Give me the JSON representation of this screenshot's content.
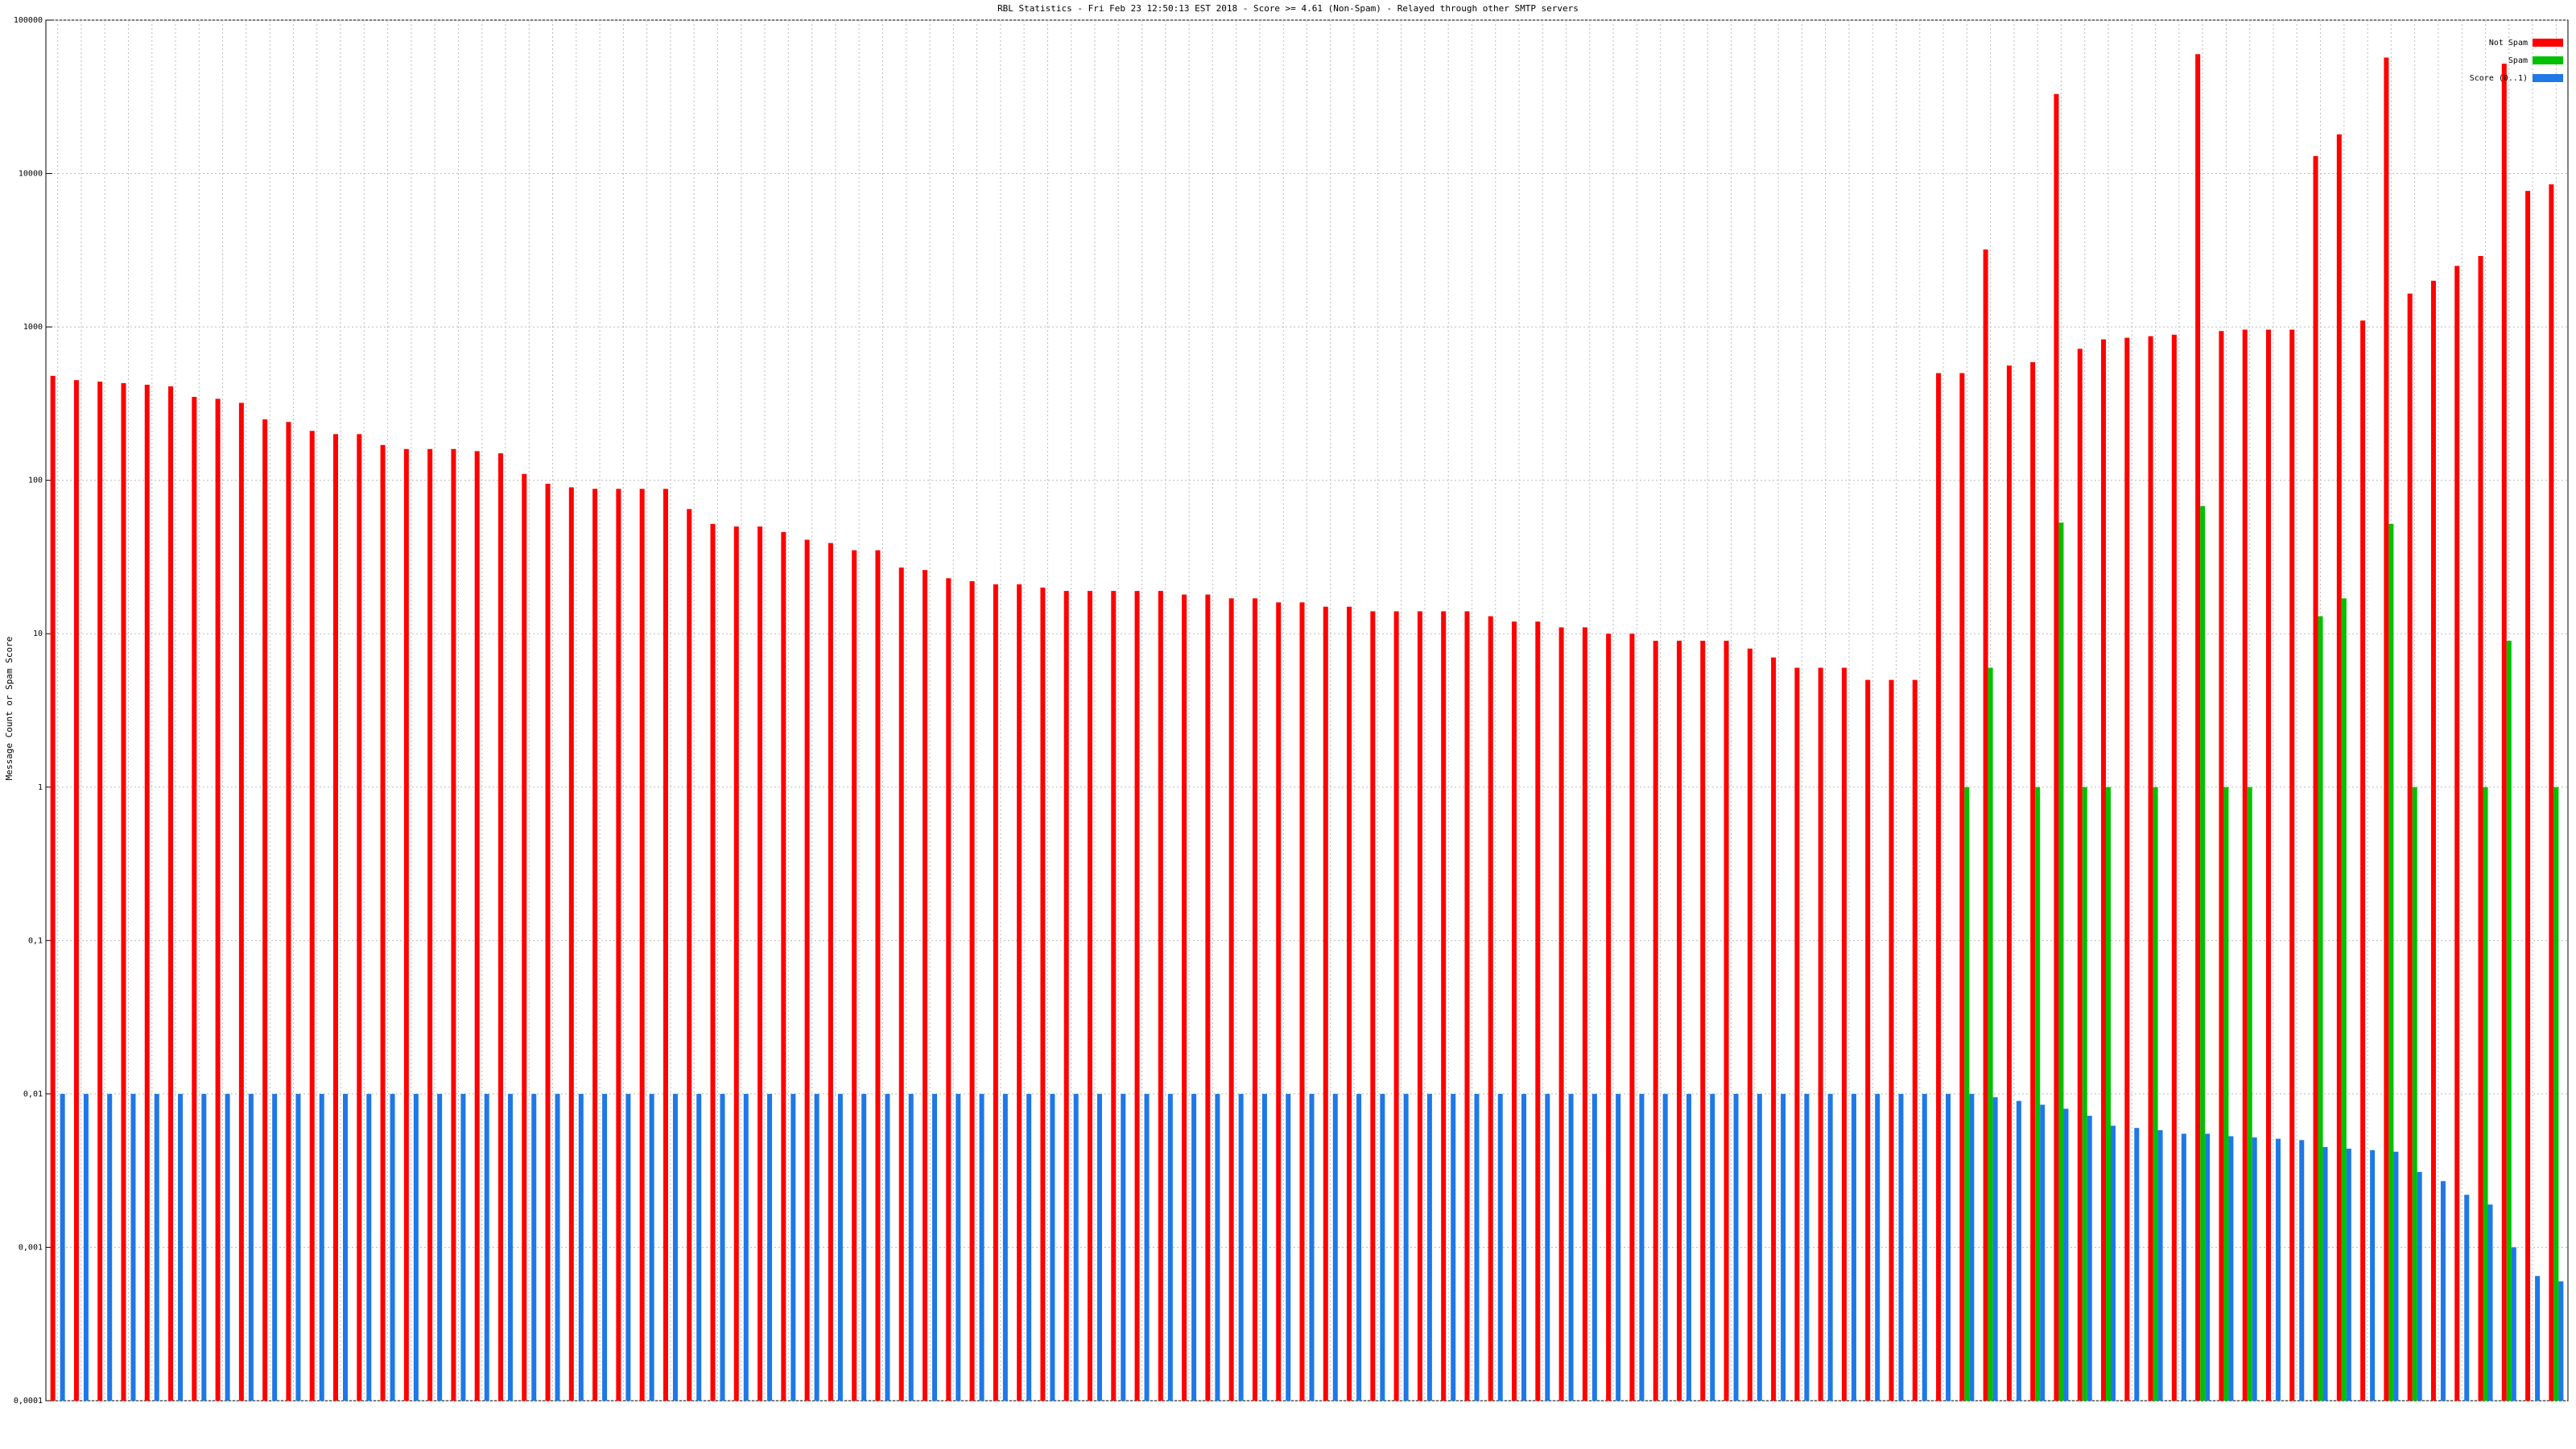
{
  "chart_data": {
    "type": "bar",
    "title": "RBL Statistics - Fri Feb 23 12:50:13 EST 2018 - Score >= 4.61 (Non-Spam) - Relayed through other SMTP servers",
    "y_label": "Message Count or Spam Score",
    "log_scale": true,
    "grid": true,
    "legend": "top-right",
    "ylim": [
      0.0001,
      100000
    ],
    "yticks": [
      {
        "value": 0.0001,
        "label": "0,0001"
      },
      {
        "value": 0.001,
        "label": "0,001"
      },
      {
        "value": 0.01,
        "label": "0,01"
      },
      {
        "value": 0.1,
        "label": "0,1"
      },
      1,
      10,
      100,
      1000,
      10000,
      100000
    ],
    "categories": [
      null,
      null,
      null,
      null,
      null,
      null,
      null,
      null,
      null,
      null,
      null,
      null,
      null,
      null,
      null,
      null,
      null,
      null,
      null,
      null,
      null,
      null,
      null,
      null,
      null,
      null,
      null,
      null,
      null,
      null,
      null,
      null,
      null,
      null,
      null,
      null,
      null,
      null,
      null,
      null,
      null,
      null,
      null,
      null,
      null,
      null,
      null,
      null,
      null,
      null,
      null,
      null,
      null,
      null,
      null,
      null,
      null,
      null,
      null,
      null,
      null,
      null,
      null,
      null,
      null,
      null,
      null,
      null,
      null,
      null,
      null,
      null,
      null,
      null,
      null,
      null,
      null,
      null,
      null,
      null,
      null,
      null,
      null,
      null,
      null,
      null,
      null,
      null,
      null,
      null,
      null,
      null,
      null,
      null,
      null,
      null,
      null,
      null,
      null,
      null,
      null,
      null,
      null,
      null,
      null,
      null,
      null
    ],
    "series": [
      {
        "name": "Not Spam",
        "color": "#ff0000",
        "values": [
          480,
          450,
          440,
          430,
          420,
          410,
          350,
          340,
          320,
          250,
          240,
          210,
          200,
          200,
          170,
          160,
          160,
          160,
          155,
          150,
          110,
          95,
          90,
          88,
          88,
          88,
          88,
          65,
          52,
          50,
          50,
          46,
          41,
          39,
          35,
          35,
          27,
          26,
          23,
          22,
          21,
          21,
          20,
          19,
          19,
          19,
          19,
          19,
          18,
          18,
          17,
          17,
          16,
          16,
          15,
          15,
          14,
          14,
          14,
          14,
          14,
          13,
          12,
          12,
          11,
          11,
          10,
          10,
          9,
          9,
          9,
          9,
          8,
          7,
          6,
          6,
          6,
          5,
          5,
          5,
          500,
          500,
          3200,
          560,
          590,
          33000,
          720,
          830,
          850,
          870,
          890,
          60000,
          940,
          960,
          960,
          960,
          13000,
          18000,
          1100,
          57000,
          1650,
          2000,
          2500,
          2900,
          52000,
          7700,
          8500
        ]
      },
      {
        "name": "Spam",
        "color": "#00c000",
        "values": [
          null,
          null,
          null,
          null,
          null,
          null,
          null,
          null,
          null,
          null,
          null,
          null,
          null,
          null,
          null,
          null,
          null,
          null,
          null,
          null,
          null,
          null,
          null,
          null,
          null,
          null,
          null,
          null,
          null,
          null,
          null,
          null,
          null,
          null,
          null,
          null,
          null,
          null,
          null,
          null,
          null,
          null,
          null,
          null,
          null,
          null,
          null,
          null,
          null,
          null,
          null,
          null,
          null,
          null,
          null,
          null,
          null,
          null,
          null,
          null,
          null,
          null,
          null,
          null,
          null,
          null,
          null,
          null,
          null,
          null,
          null,
          null,
          null,
          null,
          null,
          null,
          null,
          null,
          null,
          null,
          null,
          1,
          6,
          null,
          1,
          53,
          1,
          1,
          null,
          1,
          null,
          68,
          1,
          1,
          null,
          null,
          13,
          17,
          null,
          52,
          1,
          null,
          null,
          1,
          9,
          null,
          1
        ]
      },
      {
        "name": "Score (0..1)",
        "color": "#1e78e6",
        "values": [
          0.01,
          0.01,
          0.01,
          0.01,
          0.01,
          0.01,
          0.01,
          0.01,
          0.01,
          0.01,
          0.01,
          0.01,
          0.01,
          0.01,
          0.01,
          0.01,
          0.01,
          0.01,
          0.01,
          0.01,
          0.01,
          0.01,
          0.01,
          0.01,
          0.01,
          0.01,
          0.01,
          0.01,
          0.01,
          0.01,
          0.01,
          0.01,
          0.01,
          0.01,
          0.01,
          0.01,
          0.01,
          0.01,
          0.01,
          0.01,
          0.01,
          0.01,
          0.01,
          0.01,
          0.01,
          0.01,
          0.01,
          0.01,
          0.01,
          0.01,
          0.01,
          0.01,
          0.01,
          0.01,
          0.01,
          0.01,
          0.01,
          0.01,
          0.01,
          0.01,
          0.01,
          0.01,
          0.01,
          0.01,
          0.01,
          0.01,
          0.01,
          0.01,
          0.01,
          0.01,
          0.01,
          0.01,
          0.01,
          0.01,
          0.01,
          0.01,
          0.01,
          0.01,
          0.01,
          0.01,
          0.01,
          0.01,
          0.0095,
          0.009,
          0.0085,
          0.008,
          0.0072,
          0.0062,
          0.006,
          0.0058,
          0.0055,
          0.0055,
          0.0053,
          0.0052,
          0.0051,
          0.005,
          0.0045,
          0.0044,
          0.0043,
          0.0042,
          0.0031,
          0.0027,
          0.0022,
          0.0019,
          0.001,
          0.00065,
          0.0006
        ]
      }
    ]
  }
}
